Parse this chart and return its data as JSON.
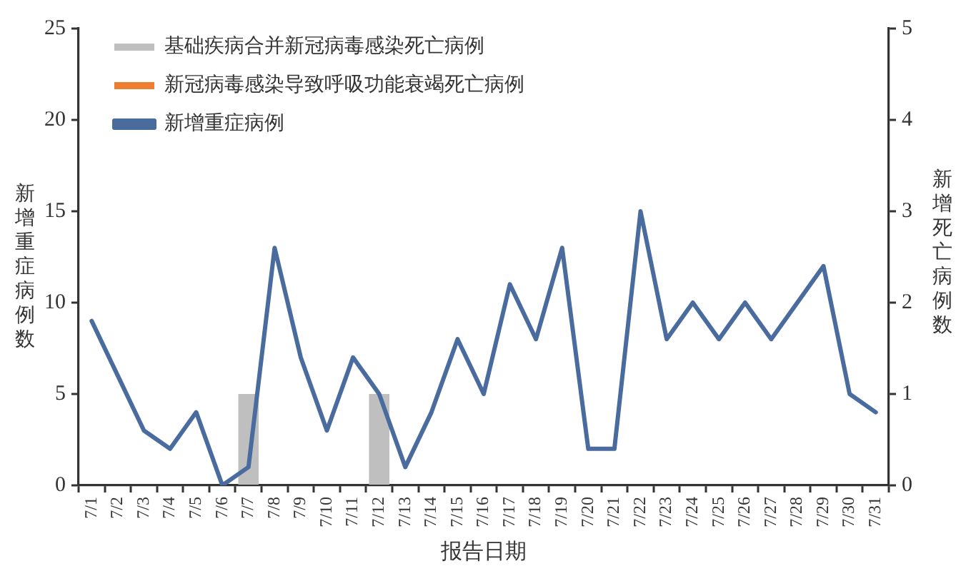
{
  "chart_data": {
    "type": "bar",
    "categories": [
      "7/1",
      "7/2",
      "7/3",
      "7/4",
      "7/5",
      "7/6",
      "7/7",
      "7/8",
      "7/9",
      "7/10",
      "7/11",
      "7/12",
      "7/13",
      "7/14",
      "7/15",
      "7/16",
      "7/17",
      "7/18",
      "7/19",
      "7/20",
      "7/21",
      "7/22",
      "7/23",
      "7/24",
      "7/25",
      "7/26",
      "7/27",
      "7/28",
      "7/29",
      "7/30",
      "7/31"
    ],
    "xlabel": "报告日期",
    "ylabel": "新增重症病例数",
    "y2label": "新增死亡病例数",
    "series": [
      {
        "name": "基础疾病合并新冠病毒感染死亡病例",
        "axis": "y2",
        "color": "#bfbfbf",
        "values": [
          0,
          0,
          0,
          0,
          0,
          0,
          1,
          0,
          0,
          0,
          0,
          1,
          0,
          0,
          0,
          0,
          0,
          0,
          0,
          0,
          0,
          0,
          0,
          0,
          0,
          0,
          0,
          0,
          0,
          0,
          0
        ]
      },
      {
        "name": "新冠病毒感染导致呼吸功能衰竭死亡病例",
        "axis": "y2",
        "color": "#ed7d31",
        "values": [
          0,
          0,
          0,
          0,
          0,
          0,
          0,
          0,
          0,
          0,
          0,
          0,
          0,
          0,
          0,
          0,
          0,
          0,
          0,
          0,
          0,
          0,
          0,
          0,
          0,
          0,
          0,
          0,
          0,
          0,
          0
        ]
      },
      {
        "name": "新增重症病例",
        "type": "line",
        "color": "#4a6b9d",
        "values": [
          9,
          6,
          3,
          2,
          4,
          0,
          1,
          13,
          7,
          3,
          7,
          5,
          1,
          4,
          8,
          5,
          11,
          8,
          13,
          2,
          2,
          15,
          8,
          10,
          8,
          10,
          8,
          10,
          12,
          5,
          4
        ]
      }
    ],
    "stacked": true,
    "ylim": [
      0,
      25
    ],
    "yticks": [
      0,
      5,
      10,
      15,
      20,
      25
    ],
    "y2lim": [
      0,
      5
    ],
    "y2ticks": [
      0,
      1,
      2,
      3,
      4,
      5
    ],
    "grid": false,
    "legend": "top left",
    "marker": "none",
    "line_style": "solid"
  }
}
